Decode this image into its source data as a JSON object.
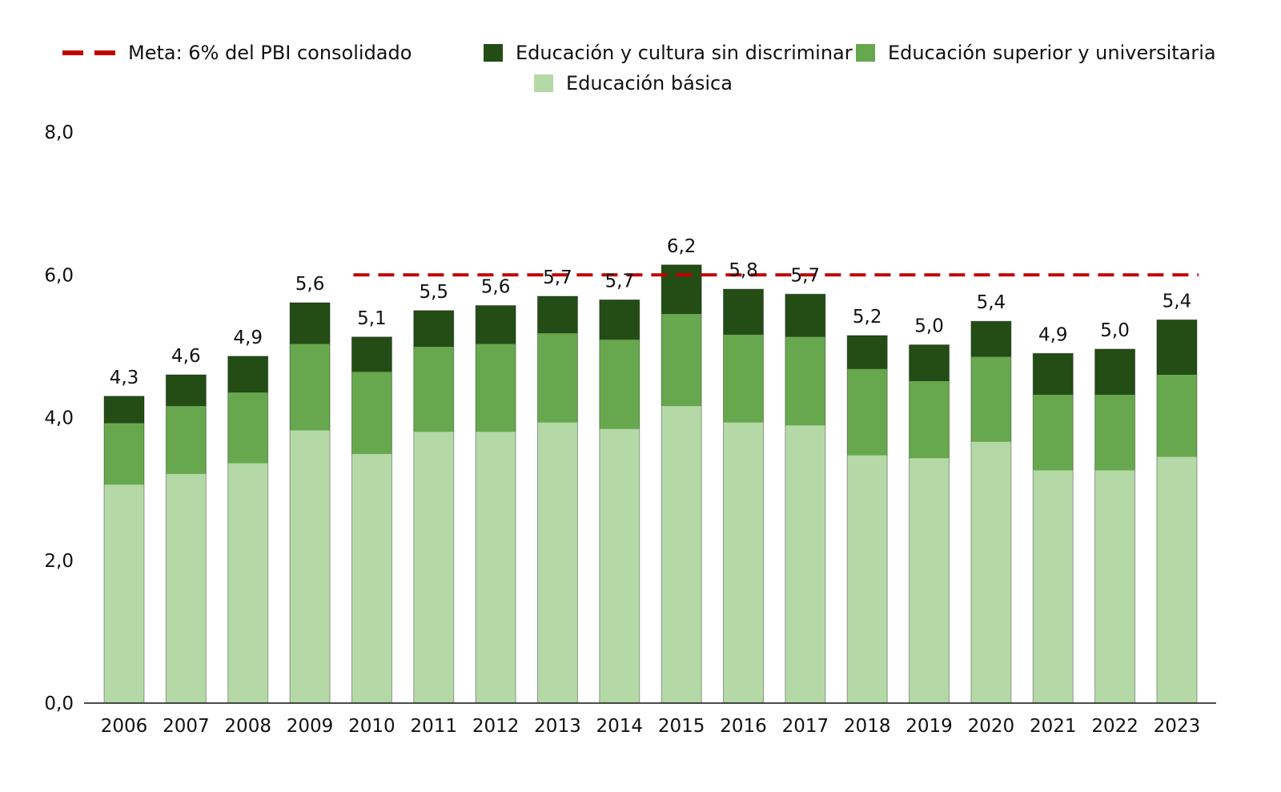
{
  "chart_data": {
    "type": "bar",
    "stacked": true,
    "categories": [
      "2006",
      "2007",
      "2008",
      "2009",
      "2010",
      "2011",
      "2012",
      "2013",
      "2014",
      "2015",
      "2016",
      "2017",
      "2018",
      "2019",
      "2020",
      "2021",
      "2022",
      "2023"
    ],
    "series": [
      {
        "name": "Educación básica",
        "color": "#b5d8a7",
        "values": [
          3.06,
          3.21,
          3.36,
          3.82,
          3.49,
          3.8,
          3.8,
          3.93,
          3.84,
          4.16,
          3.93,
          3.89,
          3.47,
          3.43,
          3.66,
          3.26,
          3.26,
          3.45
        ]
      },
      {
        "name": "Educación superior y universitaria",
        "color": "#67a84e",
        "values": [
          0.86,
          0.95,
          0.99,
          1.21,
          1.15,
          1.19,
          1.23,
          1.25,
          1.25,
          1.29,
          1.23,
          1.24,
          1.21,
          1.08,
          1.19,
          1.06,
          1.06,
          1.15
        ]
      },
      {
        "name": "Educación y cultura sin discriminar",
        "color": "#244d15",
        "values": [
          0.38,
          0.44,
          0.51,
          0.58,
          0.49,
          0.51,
          0.54,
          0.52,
          0.56,
          0.69,
          0.64,
          0.6,
          0.47,
          0.51,
          0.5,
          0.58,
          0.64,
          0.77
        ]
      }
    ],
    "totals": [
      "4,3",
      "4,6",
      "4,9",
      "5,6",
      "5,1",
      "5,5",
      "5,6",
      "5,7",
      "5,7",
      "6,2",
      "5,8",
      "5,7",
      "5,2",
      "5,0",
      "5,4",
      "4,9",
      "5,0",
      "5,4"
    ],
    "reference_line": {
      "name": "Meta: 6% del PBI consolidado",
      "value": 6.0,
      "from": "2010",
      "to": "2023",
      "color": "#c00000",
      "style": "dashed"
    },
    "yticks": [
      "0,0",
      "2,0",
      "4,0",
      "6,0",
      "8,0"
    ],
    "ylim": [
      0,
      8
    ],
    "grid": false,
    "legend_position": "top"
  },
  "legend": {
    "meta": "Meta: 6% del PBI consolidado",
    "sin_discriminar": "Educación y cultura sin discriminar",
    "superior": "Educación superior y universitaria",
    "basica": "Educación básica"
  }
}
